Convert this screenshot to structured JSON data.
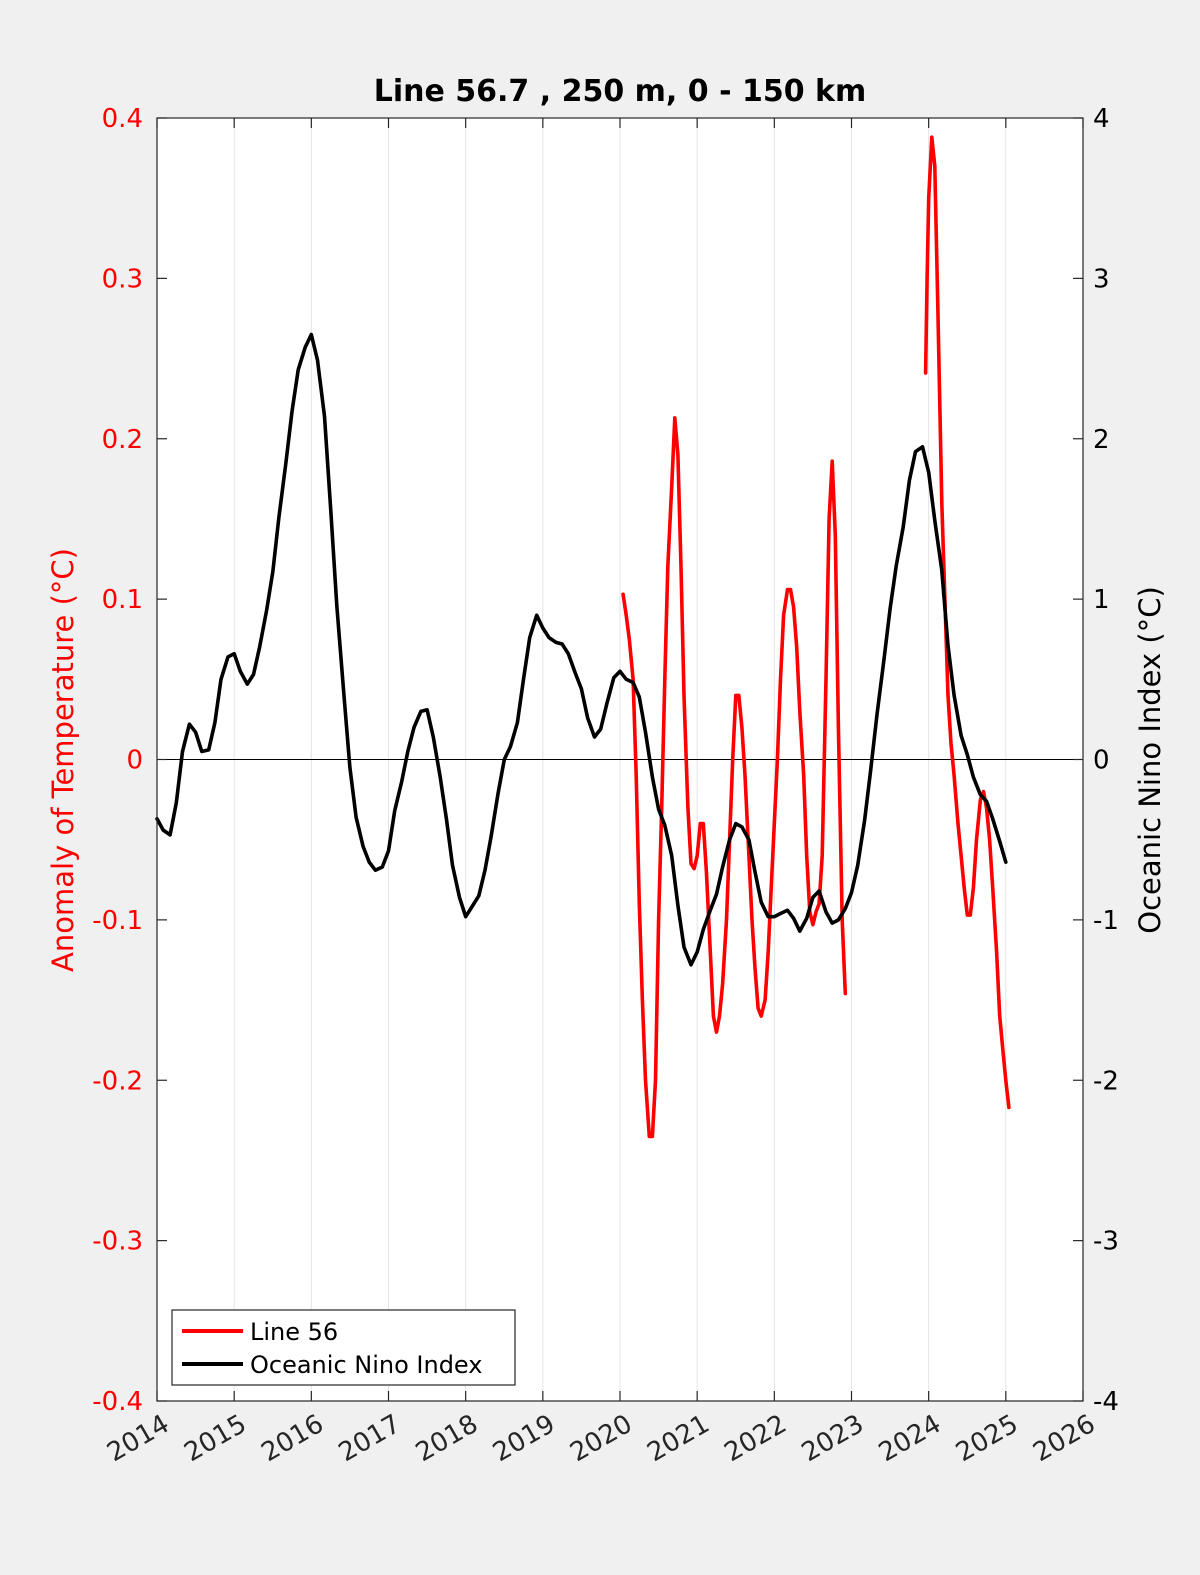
{
  "chart_data": {
    "type": "line",
    "title": "Line 56.7 , 250 m, 0 - 150 km",
    "xlabel": "",
    "ylabel_left": "Anomaly of Temperature (°C)",
    "ylabel_right": "Oceanic Nino Index (°C)",
    "xlim": [
      2014,
      2026
    ],
    "ylim_left": [
      -0.4,
      0.4
    ],
    "ylim_right": [
      -4,
      4
    ],
    "x_ticks": [
      "2014",
      "2015",
      "2016",
      "2017",
      "2018",
      "2019",
      "2020",
      "2021",
      "2022",
      "2023",
      "2024",
      "2025",
      "2026"
    ],
    "y_ticks_left": [
      "-0.4",
      "-0.3",
      "-0.2",
      "-0.1",
      "0",
      "0.1",
      "0.2",
      "0.3",
      "0.4"
    ],
    "y_ticks_right": [
      "-4",
      "-3",
      "-2",
      "-1",
      "0",
      "1",
      "2",
      "3",
      "4"
    ],
    "grid": "vertical",
    "legend_position": "bottom-left",
    "left_axis_color": "#ff0000",
    "right_axis_color": "#000000",
    "series": [
      {
        "name": "Line 56",
        "axis": "left",
        "color": "#ff0000",
        "segments": [
          [
            [
              2020.04,
              0.103
            ],
            [
              2020.08,
              0.09
            ],
            [
              2020.12,
              0.075
            ],
            [
              2020.17,
              0.05
            ],
            [
              2020.21,
              -0.01
            ],
            [
              2020.25,
              -0.09
            ],
            [
              2020.29,
              -0.15
            ],
            [
              2020.33,
              -0.2
            ],
            [
              2020.38,
              -0.235
            ],
            [
              2020.42,
              -0.235
            ],
            [
              2020.46,
              -0.2
            ],
            [
              2020.5,
              -0.1
            ],
            [
              2020.54,
              -0.03
            ],
            [
              2020.58,
              0.05
            ],
            [
              2020.62,
              0.12
            ],
            [
              2020.67,
              0.17
            ],
            [
              2020.71,
              0.213
            ],
            [
              2020.75,
              0.19
            ],
            [
              2020.79,
              0.12
            ],
            [
              2020.83,
              0.04
            ],
            [
              2020.88,
              -0.03
            ],
            [
              2020.92,
              -0.065
            ],
            [
              2020.96,
              -0.068
            ],
            [
              2021.0,
              -0.06
            ],
            [
              2021.04,
              -0.04
            ],
            [
              2021.08,
              -0.04
            ],
            [
              2021.12,
              -0.07
            ],
            [
              2021.17,
              -0.12
            ],
            [
              2021.21,
              -0.16
            ],
            [
              2021.25,
              -0.17
            ],
            [
              2021.29,
              -0.16
            ],
            [
              2021.33,
              -0.14
            ],
            [
              2021.38,
              -0.1
            ],
            [
              2021.42,
              -0.05
            ],
            [
              2021.46,
              0.0
            ],
            [
              2021.5,
              0.04
            ],
            [
              2021.54,
              0.04
            ],
            [
              2021.58,
              0.02
            ],
            [
              2021.62,
              -0.01
            ],
            [
              2021.67,
              -0.06
            ],
            [
              2021.71,
              -0.1
            ],
            [
              2021.75,
              -0.13
            ],
            [
              2021.79,
              -0.155
            ],
            [
              2021.83,
              -0.16
            ],
            [
              2021.88,
              -0.15
            ],
            [
              2021.92,
              -0.12
            ],
            [
              2021.96,
              -0.08
            ],
            [
              2022.0,
              -0.04
            ],
            [
              2022.04,
              0.0
            ],
            [
              2022.08,
              0.05
            ],
            [
              2022.12,
              0.09
            ],
            [
              2022.17,
              0.106
            ],
            [
              2022.21,
              0.106
            ],
            [
              2022.25,
              0.095
            ],
            [
              2022.29,
              0.07
            ],
            [
              2022.33,
              0.03
            ],
            [
              2022.38,
              -0.01
            ],
            [
              2022.42,
              -0.06
            ],
            [
              2022.46,
              -0.095
            ],
            [
              2022.5,
              -0.103
            ],
            [
              2022.54,
              -0.095
            ],
            [
              2022.58,
              -0.09
            ],
            [
              2022.62,
              -0.06
            ],
            [
              2022.67,
              0.05
            ],
            [
              2022.71,
              0.15
            ],
            [
              2022.75,
              0.186
            ],
            [
              2022.79,
              0.14
            ],
            [
              2022.83,
              0.02
            ],
            [
              2022.88,
              -0.1
            ],
            [
              2022.92,
              -0.146
            ]
          ],
          [
            [
              2023.96,
              0.241
            ],
            [
              2023.98,
              0.3
            ],
            [
              2024.0,
              0.35
            ],
            [
              2024.04,
              0.388
            ],
            [
              2024.08,
              0.37
            ],
            [
              2024.12,
              0.28
            ],
            [
              2024.17,
              0.16
            ],
            [
              2024.21,
              0.1
            ],
            [
              2024.25,
              0.04
            ],
            [
              2024.29,
              0.01
            ],
            [
              2024.33,
              -0.01
            ],
            [
              2024.38,
              -0.04
            ],
            [
              2024.42,
              -0.06
            ],
            [
              2024.46,
              -0.08
            ],
            [
              2024.5,
              -0.097
            ],
            [
              2024.54,
              -0.097
            ],
            [
              2024.58,
              -0.08
            ],
            [
              2024.62,
              -0.05
            ],
            [
              2024.67,
              -0.025
            ],
            [
              2024.71,
              -0.02
            ],
            [
              2024.75,
              -0.03
            ],
            [
              2024.79,
              -0.05
            ],
            [
              2024.83,
              -0.08
            ],
            [
              2024.88,
              -0.12
            ],
            [
              2024.92,
              -0.16
            ],
            [
              2024.96,
              -0.18
            ],
            [
              2025.0,
              -0.2
            ],
            [
              2025.04,
              -0.217
            ]
          ]
        ]
      },
      {
        "name": "Oceanic Nino Index",
        "axis": "right",
        "color": "#000000",
        "points": [
          [
            2014.0,
            -0.37
          ],
          [
            2014.08,
            -0.44
          ],
          [
            2014.17,
            -0.47
          ],
          [
            2014.25,
            -0.27
          ],
          [
            2014.33,
            0.05
          ],
          [
            2014.42,
            0.22
          ],
          [
            2014.5,
            0.17
          ],
          [
            2014.58,
            0.05
          ],
          [
            2014.67,
            0.06
          ],
          [
            2014.75,
            0.23
          ],
          [
            2014.83,
            0.5
          ],
          [
            2014.92,
            0.64
          ],
          [
            2015.0,
            0.66
          ],
          [
            2015.08,
            0.55
          ],
          [
            2015.17,
            0.47
          ],
          [
            2015.25,
            0.53
          ],
          [
            2015.33,
            0.7
          ],
          [
            2015.42,
            0.93
          ],
          [
            2015.5,
            1.17
          ],
          [
            2015.58,
            1.51
          ],
          [
            2015.67,
            1.85
          ],
          [
            2015.75,
            2.17
          ],
          [
            2015.83,
            2.43
          ],
          [
            2015.92,
            2.57
          ],
          [
            2016.0,
            2.65
          ],
          [
            2016.08,
            2.49
          ],
          [
            2016.17,
            2.14
          ],
          [
            2016.25,
            1.57
          ],
          [
            2016.33,
            0.96
          ],
          [
            2016.42,
            0.42
          ],
          [
            2016.5,
            -0.05
          ],
          [
            2016.58,
            -0.36
          ],
          [
            2016.67,
            -0.54
          ],
          [
            2016.75,
            -0.64
          ],
          [
            2016.83,
            -0.69
          ],
          [
            2016.92,
            -0.67
          ],
          [
            2017.0,
            -0.57
          ],
          [
            2017.08,
            -0.32
          ],
          [
            2017.17,
            -0.14
          ],
          [
            2017.25,
            0.05
          ],
          [
            2017.33,
            0.2
          ],
          [
            2017.42,
            0.3
          ],
          [
            2017.5,
            0.31
          ],
          [
            2017.58,
            0.14
          ],
          [
            2017.67,
            -0.11
          ],
          [
            2017.75,
            -0.37
          ],
          [
            2017.83,
            -0.66
          ],
          [
            2017.92,
            -0.86
          ],
          [
            2018.0,
            -0.98
          ],
          [
            2018.08,
            -0.92
          ],
          [
            2018.17,
            -0.85
          ],
          [
            2018.25,
            -0.69
          ],
          [
            2018.33,
            -0.48
          ],
          [
            2018.42,
            -0.21
          ],
          [
            2018.5,
            0.0
          ],
          [
            2018.58,
            0.08
          ],
          [
            2018.67,
            0.23
          ],
          [
            2018.75,
            0.5
          ],
          [
            2018.83,
            0.76
          ],
          [
            2018.92,
            0.9
          ],
          [
            2019.0,
            0.82
          ],
          [
            2019.08,
            0.76
          ],
          [
            2019.17,
            0.73
          ],
          [
            2019.25,
            0.72
          ],
          [
            2019.33,
            0.66
          ],
          [
            2019.42,
            0.54
          ],
          [
            2019.5,
            0.44
          ],
          [
            2019.58,
            0.26
          ],
          [
            2019.67,
            0.14
          ],
          [
            2019.75,
            0.19
          ],
          [
            2019.83,
            0.35
          ],
          [
            2019.92,
            0.51
          ],
          [
            2020.0,
            0.55
          ],
          [
            2020.08,
            0.5
          ],
          [
            2020.17,
            0.48
          ],
          [
            2020.25,
            0.39
          ],
          [
            2020.33,
            0.17
          ],
          [
            2020.42,
            -0.11
          ],
          [
            2020.5,
            -0.31
          ],
          [
            2020.58,
            -0.41
          ],
          [
            2020.67,
            -0.6
          ],
          [
            2020.75,
            -0.91
          ],
          [
            2020.83,
            -1.17
          ],
          [
            2020.92,
            -1.28
          ],
          [
            2021.0,
            -1.2
          ],
          [
            2021.08,
            -1.06
          ],
          [
            2021.17,
            -0.94
          ],
          [
            2021.25,
            -0.84
          ],
          [
            2021.33,
            -0.67
          ],
          [
            2021.42,
            -0.5
          ],
          [
            2021.5,
            -0.4
          ],
          [
            2021.58,
            -0.42
          ],
          [
            2021.67,
            -0.5
          ],
          [
            2021.75,
            -0.7
          ],
          [
            2021.83,
            -0.89
          ],
          [
            2021.92,
            -0.98
          ],
          [
            2022.0,
            -0.98
          ],
          [
            2022.08,
            -0.96
          ],
          [
            2022.17,
            -0.94
          ],
          [
            2022.25,
            -0.99
          ],
          [
            2022.33,
            -1.07
          ],
          [
            2022.42,
            -0.99
          ],
          [
            2022.5,
            -0.86
          ],
          [
            2022.58,
            -0.82
          ],
          [
            2022.67,
            -0.95
          ],
          [
            2022.75,
            -1.02
          ],
          [
            2022.83,
            -1.0
          ],
          [
            2022.92,
            -0.93
          ],
          [
            2023.0,
            -0.83
          ],
          [
            2023.08,
            -0.66
          ],
          [
            2023.17,
            -0.38
          ],
          [
            2023.25,
            -0.06
          ],
          [
            2023.33,
            0.28
          ],
          [
            2023.42,
            0.62
          ],
          [
            2023.5,
            0.94
          ],
          [
            2023.58,
            1.21
          ],
          [
            2023.67,
            1.45
          ],
          [
            2023.75,
            1.74
          ],
          [
            2023.83,
            1.92
          ],
          [
            2023.92,
            1.95
          ],
          [
            2024.0,
            1.79
          ],
          [
            2024.08,
            1.49
          ],
          [
            2024.17,
            1.18
          ],
          [
            2024.25,
            0.71
          ],
          [
            2024.33,
            0.4
          ],
          [
            2024.42,
            0.15
          ],
          [
            2024.5,
            0.03
          ],
          [
            2024.58,
            -0.11
          ],
          [
            2024.67,
            -0.22
          ],
          [
            2024.75,
            -0.26
          ],
          [
            2024.83,
            -0.37
          ],
          [
            2024.92,
            -0.51
          ],
          [
            2025.0,
            -0.64
          ]
        ]
      }
    ]
  }
}
